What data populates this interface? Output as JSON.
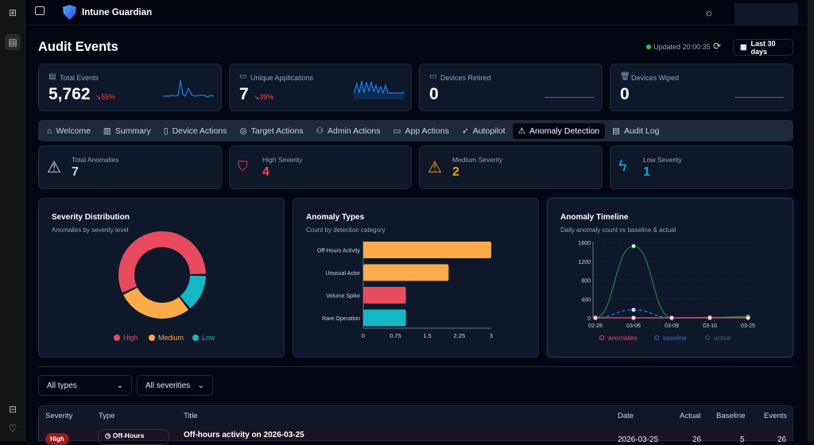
{
  "app": {
    "title": "Intune Guardian"
  },
  "page": {
    "title": "Audit Events",
    "updated": "Updated 20:00:35",
    "range": "Last 30 days"
  },
  "stats": [
    {
      "label": "Total Events",
      "value": "5,762",
      "change": "55%"
    },
    {
      "label": "Unique Applications",
      "value": "7",
      "change": "39%"
    },
    {
      "label": "Devices Retired",
      "value": "0"
    },
    {
      "label": "Devices Wiped",
      "value": "0"
    }
  ],
  "tabs": [
    "Welcome",
    "Summary",
    "Device Actions",
    "Target Actions",
    "Admin Actions",
    "App Actions",
    "Autopilot",
    "Anomaly Detection",
    "Audit Log"
  ],
  "anomaly_stats": [
    {
      "label": "Total Anomalies",
      "value": "7",
      "color": "#cbd5e1"
    },
    {
      "label": "High Severity",
      "value": "4",
      "color": "#ef4444"
    },
    {
      "label": "Medium Severity",
      "value": "2",
      "color": "#f59e0b"
    },
    {
      "label": "Low Severity",
      "value": "1",
      "color": "#0ea5e9"
    }
  ],
  "chart_data": [
    {
      "type": "pie",
      "title": "Severity Distribution",
      "subtitle": "Anomalies by severity level",
      "labels": [
        "High",
        "Medium",
        "Low"
      ],
      "values": [
        4,
        2,
        1
      ],
      "colors": [
        "#e84a5f",
        "#fbab4a",
        "#14b8c4"
      ]
    },
    {
      "type": "bar",
      "title": "Anomaly Types",
      "subtitle": "Count by detection category",
      "categories": [
        "Off-Hours Activity",
        "Unusual Actor",
        "Volume Spike",
        "Rare Operation"
      ],
      "values": [
        3,
        2,
        1,
        1
      ],
      "colors": [
        "#fbab4a",
        "#fbab4a",
        "#e84a5f",
        "#14b8c4"
      ],
      "xlim": [
        0,
        3
      ],
      "xticks": [
        "0",
        "0.75",
        "1.5",
        "2.25",
        "3"
      ]
    },
    {
      "type": "line",
      "title": "Anomaly Timeline",
      "subtitle": "Daily anomaly count vs baseline & actual",
      "x": [
        "02-26",
        "03-06",
        "03-09",
        "03-10",
        "03-25"
      ],
      "yticks": [
        "0",
        "400",
        "800",
        "1200",
        "1600"
      ],
      "ylim": [
        0,
        1600
      ],
      "series": [
        {
          "name": "anomalies",
          "values": [
            1,
            1,
            1,
            1,
            1
          ],
          "color": "#e84a5f"
        },
        {
          "name": "baseline",
          "values": [
            0,
            170,
            0,
            3,
            5
          ],
          "color": "#1e7ad6"
        },
        {
          "name": "actual",
          "values": [
            0,
            1520,
            0,
            10,
            26
          ],
          "color": "#15803d"
        }
      ]
    }
  ],
  "filters": {
    "type": "All types",
    "severity": "All severities"
  },
  "table": {
    "headers": [
      "Severity",
      "Type",
      "Title",
      "Date",
      "Actual",
      "Baseline",
      "Events"
    ],
    "rows": [
      {
        "severity": "High",
        "type": "Off-Hours",
        "title": "Off-hours activity on 2026-03-25",
        "date": "2026-03-25",
        "actual": "26",
        "baseline": "5",
        "events": "26"
      }
    ]
  }
}
